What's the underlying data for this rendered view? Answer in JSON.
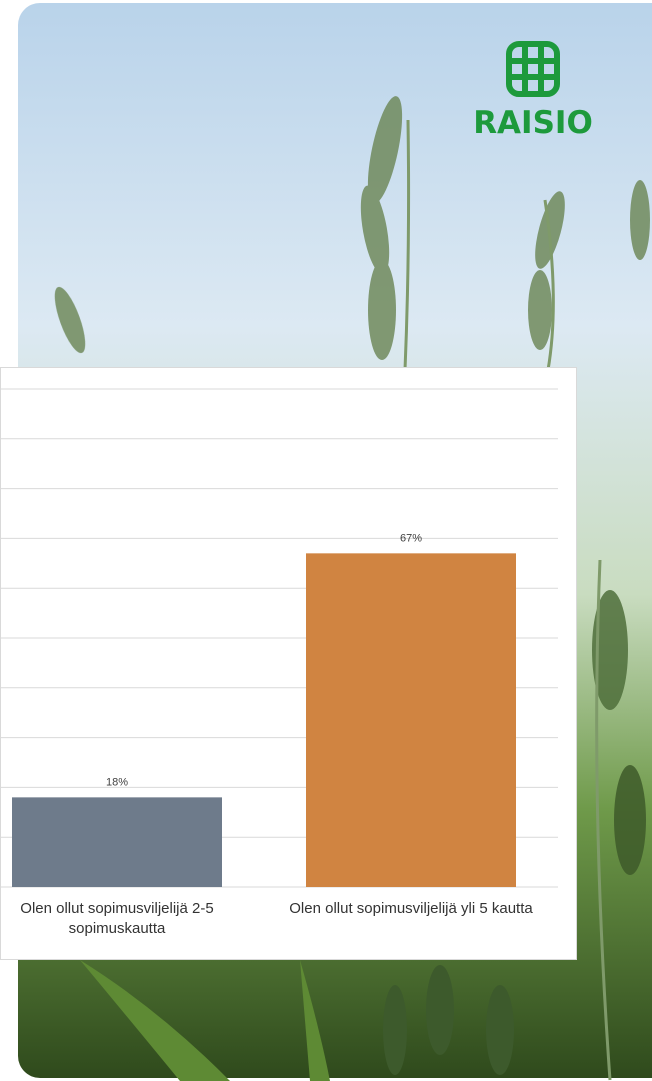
{
  "logo": "RAISIO",
  "chart_data": {
    "type": "bar",
    "categories": [
      "Olen ollut sopimusviljelijä 2-5 sopimuskautta",
      "Olen ollut sopimusviljelijä yli 5 kautta"
    ],
    "values": [
      18,
      67
    ],
    "value_labels": [
      "18%",
      "67%"
    ],
    "colors": [
      "#6e7b8b",
      "#d08441"
    ],
    "ylim": [
      0,
      100
    ],
    "yticks": [
      0,
      10,
      20,
      30,
      40,
      50,
      60,
      70,
      80,
      90,
      100
    ],
    "grid": true
  }
}
